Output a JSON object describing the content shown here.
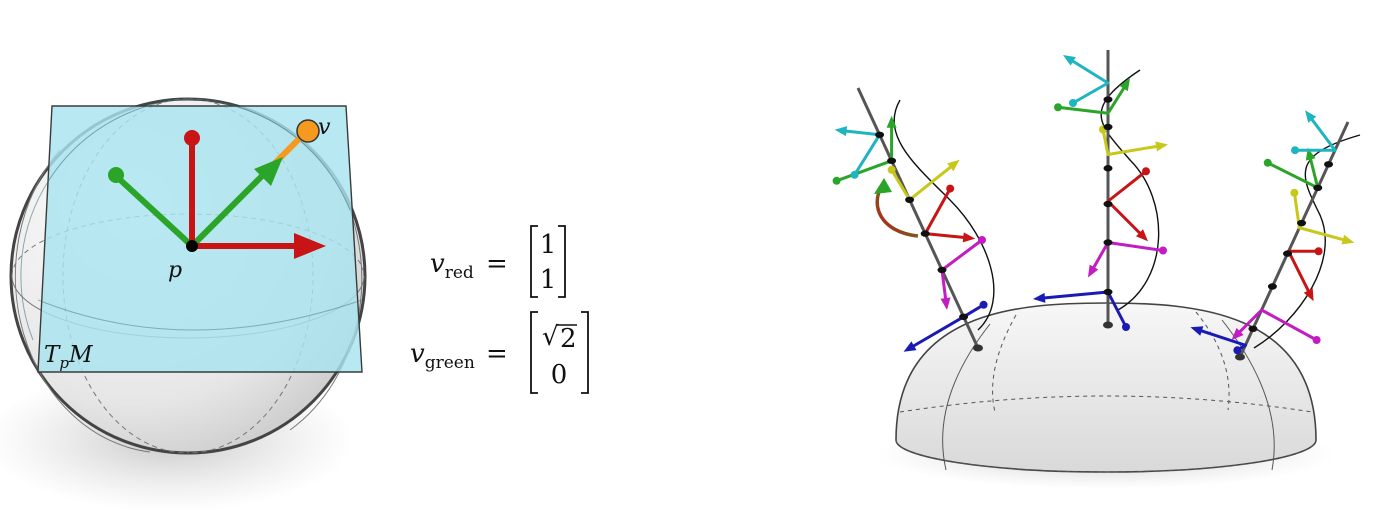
{
  "left_figure": {
    "point_label": "p",
    "vector_label": "v",
    "tangent_plane_label": {
      "main": "T",
      "sub": "p",
      "tail": "M"
    },
    "colors": {
      "plane_fill": "#a8e4ef",
      "red": "#c81414",
      "green": "#2aa52a",
      "orange": "#f59a1e",
      "sphere_edge": "#444444"
    }
  },
  "equations": {
    "red": {
      "var": "v",
      "sub": "red",
      "equals": "=",
      "top": "1",
      "bottom": "1"
    },
    "green": {
      "var": "v",
      "sub": "green",
      "equals": "=",
      "top": "2",
      "top_prefix": "√",
      "bottom": "0"
    }
  },
  "right_figure": {
    "arrow_colors": [
      "#1a1ab4",
      "#c21cc2",
      "#c81414",
      "#c8c81a",
      "#2aa52a",
      "#1eb4c0"
    ],
    "dome_fill": "#ececec"
  }
}
